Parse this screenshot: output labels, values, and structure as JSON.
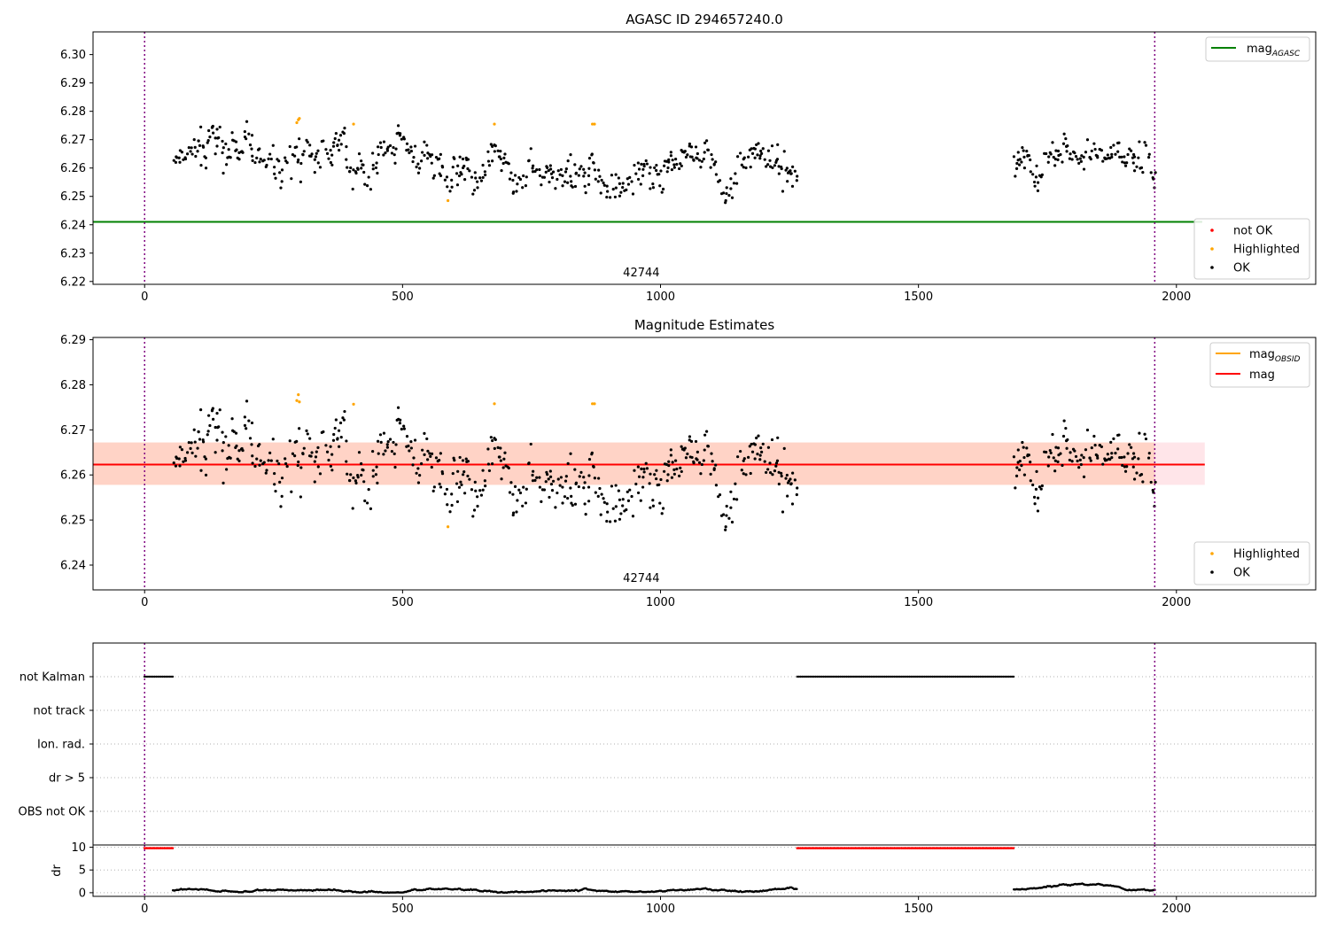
{
  "chart_data": [
    {
      "type": "scatter",
      "title": "AGASC ID 294657240.0",
      "xlim": [
        -100,
        2270
      ],
      "ylim": [
        6.219,
        6.308
      ],
      "xticks": [
        0,
        500,
        1000,
        1500,
        2000
      ],
      "yticks": [
        6.22,
        6.23,
        6.24,
        6.25,
        6.26,
        6.27,
        6.28,
        6.29,
        6.3
      ],
      "obsid_boundaries": [
        0,
        1958
      ],
      "obsid_label": "42744",
      "obsid_label_x": 980,
      "reference_line": {
        "name": "mag",
        "subscript": "AGASC",
        "y": 6.241,
        "x_range": [
          -100,
          2270
        ],
        "color": "#008000"
      },
      "legend_lines": {
        "placement": "top-right",
        "entries": [
          {
            "name": "mag",
            "subscript": "AGASC",
            "color": "#008000"
          }
        ]
      },
      "legend_points": {
        "placement": "bottom-right",
        "entries": [
          {
            "name": "not OK",
            "color": "#ff0000"
          },
          {
            "name": "Highlighted",
            "color": "#ffa500"
          },
          {
            "name": "OK",
            "color": "#000000"
          }
        ]
      },
      "segments": [
        {
          "x_range": [
            55,
            1265
          ],
          "mean": 6.262,
          "spread": 0.0045
        },
        {
          "x_range": [
            1685,
            1958
          ],
          "mean": 6.262,
          "spread": 0.0042
        }
      ],
      "highlighted": [
        {
          "x": 295,
          "y": 6.276
        },
        {
          "x": 298,
          "y": 6.277
        },
        {
          "x": 300,
          "y": 6.2775
        },
        {
          "x": 405,
          "y": 6.2755
        },
        {
          "x": 588,
          "y": 6.2485
        },
        {
          "x": 678,
          "y": 6.2755
        },
        {
          "x": 868,
          "y": 6.2755
        },
        {
          "x": 872,
          "y": 6.2755
        }
      ]
    },
    {
      "type": "scatter",
      "title": "Magnitude Estimates",
      "xlim": [
        -100,
        2270
      ],
      "ylim": [
        6.2345,
        6.2905
      ],
      "xticks": [
        0,
        500,
        1000,
        1500,
        2000
      ],
      "yticks": [
        6.24,
        6.25,
        6.26,
        6.27,
        6.28,
        6.29
      ],
      "obsid_boundaries": [
        0,
        1958
      ],
      "obsid_label": "42744",
      "obsid_label_x": 980,
      "mag_line": {
        "name": "mag",
        "y": 6.2623,
        "x_range": [
          -100,
          2055
        ],
        "color": "#ff0000",
        "band": [
          6.2578,
          6.2672
        ]
      },
      "obsid_line": {
        "name": "mag",
        "subscript": "OBSID",
        "y": 6.2623,
        "x_range": [
          -100,
          1958
        ],
        "color": "#ffa500",
        "band": [
          6.2578,
          6.2672
        ]
      },
      "legend_lines": {
        "placement": "top-right",
        "entries": [
          {
            "name": "mag",
            "subscript": "OBSID",
            "color": "#ffa500"
          },
          {
            "name": "mag",
            "color": "#ff0000"
          }
        ]
      },
      "legend_points": {
        "placement": "bottom-right",
        "entries": [
          {
            "name": "Highlighted",
            "color": "#ffa500"
          },
          {
            "name": "OK",
            "color": "#000000"
          }
        ]
      },
      "highlighted": [
        {
          "x": 295,
          "y": 6.2765
        },
        {
          "x": 298,
          "y": 6.2778
        },
        {
          "x": 300,
          "y": 6.2762
        },
        {
          "x": 405,
          "y": 6.2757
        },
        {
          "x": 588,
          "y": 6.2485
        },
        {
          "x": 678,
          "y": 6.2758
        },
        {
          "x": 868,
          "y": 6.2758
        },
        {
          "x": 872,
          "y": 6.2758
        }
      ]
    },
    {
      "type": "scatter",
      "xlim": [
        -100,
        2270
      ],
      "categories": [
        "not Kalman",
        "not track",
        "Ion. rad.",
        "dr > 5",
        "OBS not OK"
      ],
      "flag_ranges": {
        "not Kalman": [
          [
            0,
            55
          ],
          [
            1265,
            1685
          ]
        ]
      },
      "obsid_boundaries": [
        0,
        1958
      ]
    },
    {
      "type": "scatter",
      "ylabel": "dr",
      "xlim": [
        -100,
        2270
      ],
      "ylim": [
        -0.8,
        10.5
      ],
      "yticks": [
        0,
        5,
        10
      ],
      "xticks": [
        0,
        500,
        1000,
        1500,
        2000
      ],
      "obsid_boundaries": [
        0,
        1958
      ],
      "capped_value": 10,
      "capped_ranges": [
        [
          0,
          55
        ],
        [
          1265,
          1685
        ]
      ],
      "segments": [
        {
          "x_range": [
            55,
            1265
          ],
          "mean": 0.5
        },
        {
          "x_range": [
            1685,
            1958
          ],
          "mean": 0.9
        }
      ]
    }
  ]
}
